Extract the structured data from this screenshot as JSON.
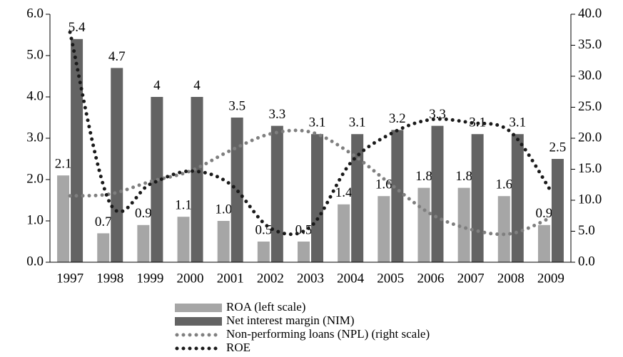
{
  "chart_data": {
    "type": "bar",
    "categories": [
      "1997",
      "1998",
      "1999",
      "2000",
      "2001",
      "2002",
      "2003",
      "2004",
      "2005",
      "2006",
      "2007",
      "2008",
      "2009"
    ],
    "ylim": [
      0,
      6
    ],
    "yticks": [
      {
        "value": 0,
        "label": "0.0"
      },
      {
        "value": 1,
        "label": "1.0"
      },
      {
        "value": 2,
        "label": "2.0"
      },
      {
        "value": 3,
        "label": "3.0"
      },
      {
        "value": 4,
        "label": "4.0"
      },
      {
        "value": 5,
        "label": "5.0"
      },
      {
        "value": 6,
        "label": "6.0"
      }
    ],
    "y2lim": [
      0,
      40
    ],
    "y2ticks": [
      {
        "value": 0,
        "label": "0.0"
      },
      {
        "value": 5,
        "label": "5.0"
      },
      {
        "value": 10,
        "label": "10.0"
      },
      {
        "value": 15,
        "label": "15.0"
      },
      {
        "value": 20,
        "label": "20.0"
      },
      {
        "value": 25,
        "label": "25.0"
      },
      {
        "value": 30,
        "label": "30.0"
      },
      {
        "value": 35,
        "label": "35.0"
      },
      {
        "value": 40,
        "label": "40.0"
      }
    ],
    "series": [
      {
        "name": "ROA (left scale)",
        "type": "bar",
        "color": "#a6a6a6",
        "values": [
          2.1,
          0.7,
          0.9,
          1.1,
          1.0,
          0.5,
          0.5,
          1.4,
          1.6,
          1.8,
          1.8,
          1.6,
          0.9
        ],
        "value_labels": [
          "2.1",
          "0.7",
          "0.9",
          "1.1",
          "1.0",
          "0.5",
          "0.5",
          "1.4",
          "1.6",
          "1.8",
          "1.8",
          "1.6",
          "0.9"
        ]
      },
      {
        "name": "Net interest margin (NIM)",
        "type": "bar",
        "color": "#636363",
        "values": [
          5.4,
          4.7,
          4,
          4,
          3.5,
          3.3,
          3.1,
          3.1,
          3.2,
          3.3,
          3.1,
          3.1,
          2.5
        ]
      },
      {
        "name": "Non-performing loans (NPL) (right scale)",
        "type": "line",
        "axis": "y2",
        "color": "#7f7f7f",
        "values": [
          10.7,
          11,
          13,
          14.7,
          18,
          20.7,
          21,
          17.6,
          12.6,
          7.8,
          5.3,
          4.6,
          7.2
        ]
      },
      {
        "name": "ROE",
        "type": "line",
        "axis": "y2",
        "color": "#1a1a1a",
        "values": [
          37.1,
          9.5,
          12.6,
          14.7,
          12.6,
          5.5,
          5.7,
          16,
          20.7,
          23,
          22.5,
          21,
          11.5
        ]
      }
    ]
  }
}
